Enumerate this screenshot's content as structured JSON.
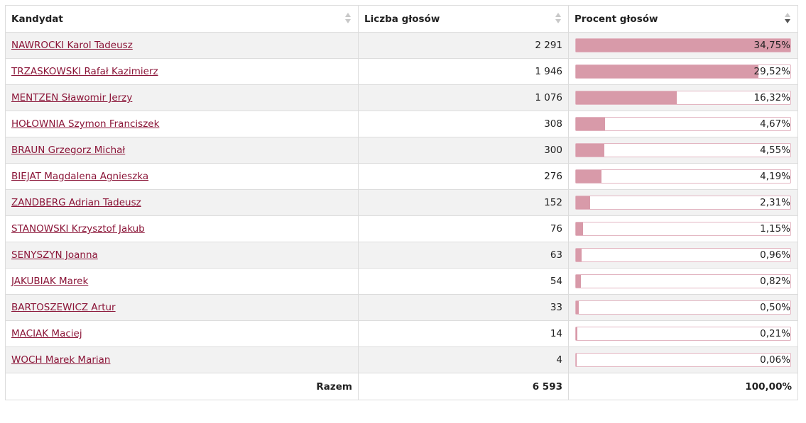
{
  "headers": {
    "candidate": "Kandydat",
    "votes": "Liczba głosów",
    "percent": "Procent głosów"
  },
  "rows": [
    {
      "name": "NAWROCKI Karol Tadeusz",
      "votes": "2 291",
      "percent": "34,75%",
      "share": 1.0
    },
    {
      "name": "TRZASKOWSKI Rafał Kazimierz",
      "votes": "1 946",
      "percent": "29,52%",
      "share": 0.8495
    },
    {
      "name": "MENTZEN Sławomir Jerzy",
      "votes": "1 076",
      "percent": "16,32%",
      "share": 0.4696
    },
    {
      "name": "HOŁOWNIA Szymon Franciszek",
      "votes": "308",
      "percent": "4,67%",
      "share": 0.1344
    },
    {
      "name": "BRAUN Grzegorz Michał",
      "votes": "300",
      "percent": "4,55%",
      "share": 0.1309
    },
    {
      "name": "BIEJAT Magdalena Agnieszka",
      "votes": "276",
      "percent": "4,19%",
      "share": 0.1205
    },
    {
      "name": "ZANDBERG Adrian Tadeusz",
      "votes": "152",
      "percent": "2,31%",
      "share": 0.0664
    },
    {
      "name": "STANOWSKI Krzysztof Jakub",
      "votes": "76",
      "percent": "1,15%",
      "share": 0.0332
    },
    {
      "name": "SENYSZYN Joanna",
      "votes": "63",
      "percent": "0,96%",
      "share": 0.0275
    },
    {
      "name": "JAKUBIAK Marek",
      "votes": "54",
      "percent": "0,82%",
      "share": 0.0236
    },
    {
      "name": "BARTOSZEWICZ Artur",
      "votes": "33",
      "percent": "0,50%",
      "share": 0.0144
    },
    {
      "name": "MACIAK Maciej",
      "votes": "14",
      "percent": "0,21%",
      "share": 0.006
    },
    {
      "name": "WOCH Marek Marian",
      "votes": "4",
      "percent": "0,06%",
      "share": 0.0017
    }
  ],
  "footer": {
    "label": "Razem",
    "votes": "6 593",
    "percent": "100,00%"
  },
  "colors": {
    "link": "#8b1538",
    "bar_fill": "#d89aa9",
    "bar_border": "#e3b6c2"
  }
}
